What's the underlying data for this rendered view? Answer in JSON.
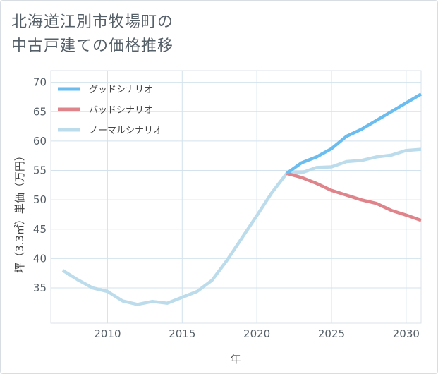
{
  "title": {
    "line1": "北海道江別市牧場町の",
    "line2": "中古戸建ての価格推移"
  },
  "chart_data": {
    "type": "line",
    "xlabel": "年",
    "ylabel": "坪（3.3㎡）単価（万円）",
    "xlim": [
      2006.2,
      2031
    ],
    "ylim": [
      29,
      72
    ],
    "x_ticks": [
      2010,
      2015,
      2020,
      2025,
      2030
    ],
    "y_ticks": [
      35,
      40,
      45,
      50,
      55,
      60,
      65,
      70
    ],
    "grid": true,
    "legend_position": "top-left",
    "series": [
      {
        "name": "グッドシナリオ",
        "color": "#6bbcef",
        "x": [
          2022,
          2023,
          2024,
          2025,
          2026,
          2027,
          2028,
          2029,
          2030,
          2031
        ],
        "y": [
          54.5,
          56.3,
          57.3,
          58.7,
          60.8,
          62.0,
          63.5,
          65.0,
          66.5,
          68.0
        ]
      },
      {
        "name": "バッドシナリオ",
        "color": "#e0848b",
        "x": [
          2022,
          2023,
          2024,
          2025,
          2026,
          2027,
          2028,
          2029,
          2030,
          2031
        ],
        "y": [
          54.5,
          53.8,
          52.8,
          51.6,
          50.8,
          50.0,
          49.4,
          48.2,
          47.4,
          46.5
        ]
      },
      {
        "name": "ノーマルシナリオ",
        "color": "#bcdcec",
        "x": [
          2007,
          2008,
          2009,
          2010,
          2011,
          2012,
          2013,
          2014,
          2015,
          2016,
          2017,
          2018,
          2019,
          2020,
          2021,
          2022,
          2023,
          2024,
          2025,
          2026,
          2027,
          2028,
          2029,
          2030,
          2031
        ],
        "y": [
          38.0,
          36.4,
          35.0,
          34.4,
          32.8,
          32.2,
          32.7,
          32.4,
          33.4,
          34.4,
          36.3,
          39.7,
          43.5,
          47.3,
          51.2,
          54.5,
          54.6,
          55.5,
          55.6,
          56.5,
          56.7,
          57.3,
          57.6,
          58.4,
          58.6
        ]
      }
    ]
  }
}
